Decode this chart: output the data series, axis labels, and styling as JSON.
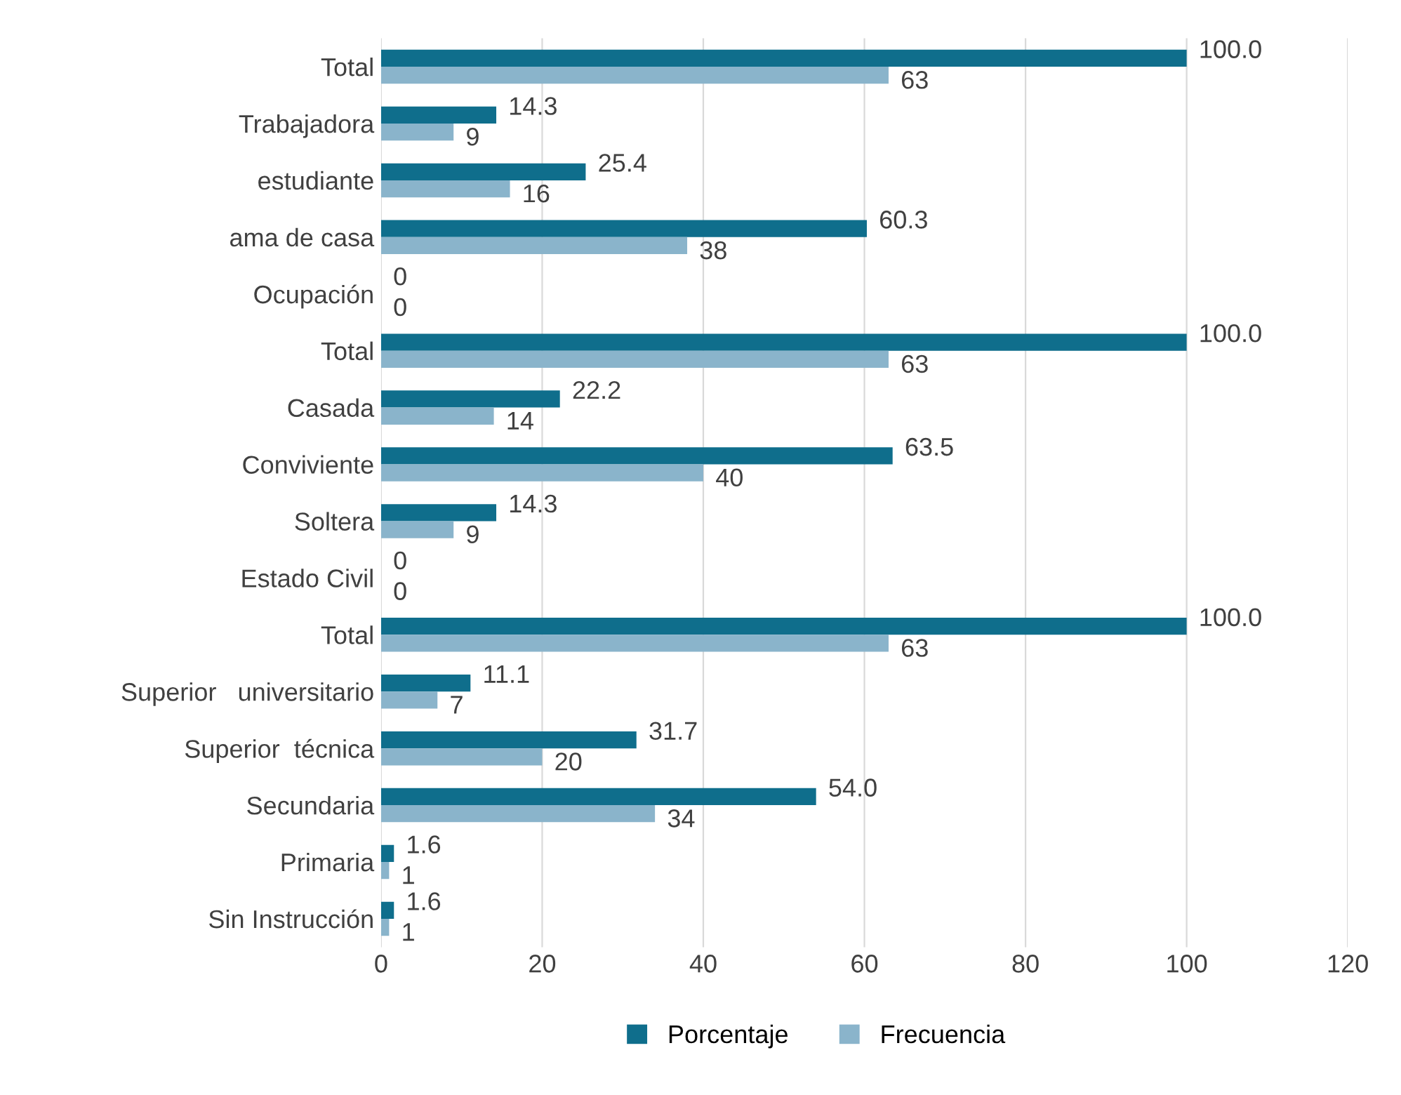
{
  "chart_data": {
    "type": "bar",
    "orientation": "horizontal",
    "categories": [
      "Total",
      "Trabajadora",
      "estudiante",
      "ama de casa",
      "Ocupación",
      "Total",
      "Casada",
      "Conviviente",
      "Soltera",
      "Estado Civil",
      "Total",
      "Superior   universitario",
      "Superior  técnica",
      "Secundaria",
      "Primaria",
      "Sin Instrucción"
    ],
    "series": [
      {
        "name": "Porcentaje",
        "color": "#0f6e8c",
        "values": [
          100.0,
          14.3,
          25.4,
          60.3,
          0,
          100.0,
          22.2,
          63.5,
          14.3,
          0,
          100.0,
          11.1,
          31.7,
          54.0,
          1.6,
          1.6
        ],
        "value_labels": [
          "100.0",
          "14.3",
          "25.4",
          "60.3",
          "0",
          "100.0",
          "22.2",
          "63.5",
          "14.3",
          "0",
          "100.0",
          "11.1",
          "31.7",
          "54.0",
          "1.6",
          "1.6"
        ]
      },
      {
        "name": "Frecuencia",
        "color": "#8ab4cb",
        "values": [
          63,
          9,
          16,
          38,
          0,
          63,
          14,
          40,
          9,
          0,
          63,
          7,
          20,
          34,
          1,
          1
        ],
        "value_labels": [
          "63",
          "9",
          "16",
          "38",
          "0",
          "63",
          "14",
          "40",
          "9",
          "0",
          "63",
          "7",
          "20",
          "34",
          "1",
          "1"
        ]
      }
    ],
    "xlim": [
      0,
      120
    ],
    "xticks": [
      0,
      20,
      40,
      60,
      80,
      100,
      120
    ],
    "grid": "x",
    "legend": "bottom"
  }
}
